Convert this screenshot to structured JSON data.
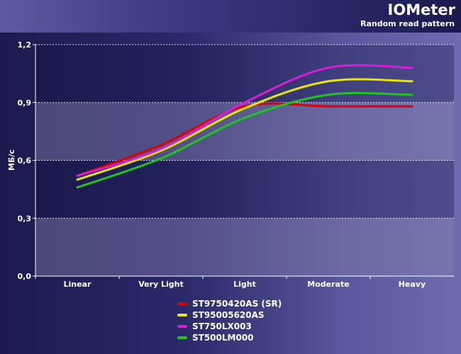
{
  "header": {
    "title": "IOMeter",
    "subtitle": "Random read pattern"
  },
  "chart_data": {
    "type": "line",
    "title": "IOMeter",
    "subtitle": "Random read pattern",
    "xlabel": "",
    "ylabel": "МБ/с",
    "categories": [
      "Linear",
      "Very Light",
      "Light",
      "Moderate",
      "Heavy"
    ],
    "ylim": [
      0,
      1.2
    ],
    "yticks": [
      0,
      0.3,
      0.6,
      0.9,
      1.2
    ],
    "ytick_labels": [
      "0,0",
      "0,3",
      "0,6",
      "0,9",
      "1,2"
    ],
    "grid": "horizontal dashed",
    "legend_position": "bottom",
    "series": [
      {
        "name": "ST9750420AS (SR)",
        "color": "#dd0000",
        "values": [
          0.52,
          0.68,
          0.88,
          0.88,
          0.88
        ]
      },
      {
        "name": "ST95005620AS",
        "color": "#e8e800",
        "values": [
          0.5,
          0.65,
          0.87,
          1.01,
          1.01
        ]
      },
      {
        "name": "ST750LX003",
        "color": "#d81ed8",
        "values": [
          0.52,
          0.66,
          0.9,
          1.08,
          1.08
        ]
      },
      {
        "name": "ST500LM000",
        "color": "#1fc41f",
        "values": [
          0.46,
          0.61,
          0.82,
          0.94,
          0.94
        ]
      }
    ]
  }
}
